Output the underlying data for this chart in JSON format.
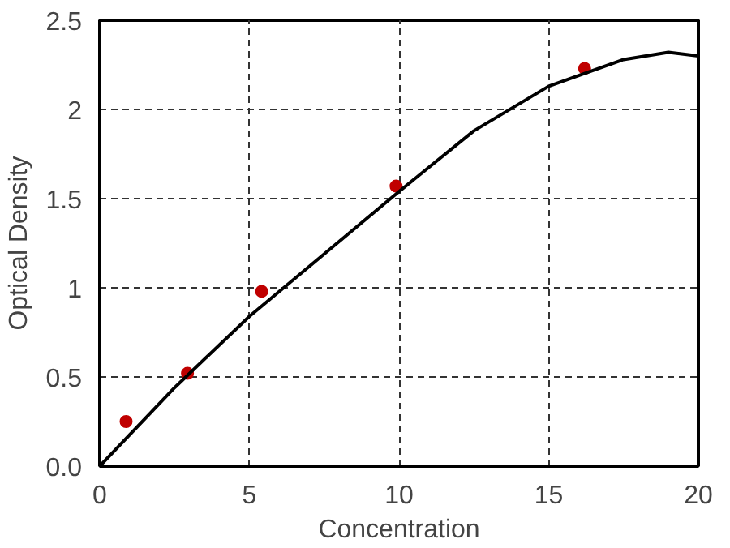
{
  "chart_data": {
    "type": "scatter",
    "xlabel": "Concentration",
    "ylabel": "Optical Density",
    "xlim": [
      0,
      20
    ],
    "ylim": [
      0,
      2.5
    ],
    "xticks": [
      0,
      5,
      10,
      15,
      20
    ],
    "yticks": [
      {
        "value": 0,
        "label": "0.0"
      },
      0.5,
      1,
      1.5,
      2,
      2.5
    ],
    "grid": true,
    "series": [
      {
        "marker": "circle",
        "color": "#c00000",
        "x": [
          0.88,
          2.93,
          5.41,
          9.9,
          16.2
        ],
        "values": [
          0.25,
          0.52,
          0.98,
          1.57,
          2.23
        ]
      },
      {
        "type": "line",
        "marker": "none",
        "color": "#000000",
        "line_style": "solid",
        "x": [
          0,
          2.5,
          5,
          7.5,
          10,
          12.5,
          15,
          17.5,
          19,
          20
        ],
        "values": [
          0,
          0.44,
          0.84,
          1.19,
          1.54,
          1.88,
          2.13,
          2.28,
          2.32,
          2.3
        ]
      }
    ]
  }
}
